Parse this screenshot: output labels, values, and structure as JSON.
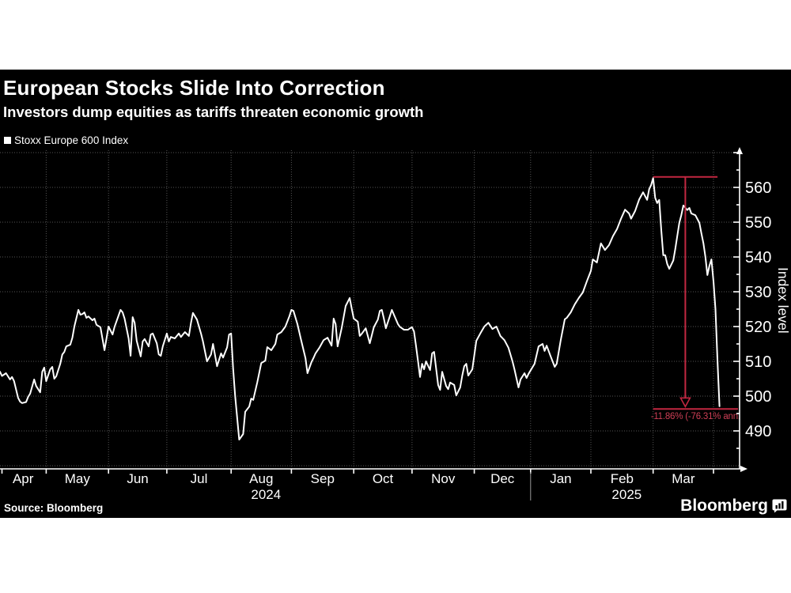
{
  "header": {
    "title": "European Stocks Slide Into Correction",
    "subtitle": "Investors dump equities as tariffs threaten economic growth"
  },
  "legend": {
    "label": "Stoxx Europe 600 Index",
    "swatch_color": "#ffffff"
  },
  "footer": {
    "source": "Source: Bloomberg",
    "brand": "Bloomberg"
  },
  "colors": {
    "panel_background": "#000000",
    "line": "#ffffff",
    "grid": "#555555",
    "axis": "#ffffff",
    "accent_red": "#c22741",
    "annotation_text_red": "#cf3f56",
    "text": "#ffffff"
  },
  "chart_data": {
    "type": "line",
    "title": "European Stocks Slide Into Correction",
    "subtitle": "Investors dump equities as tariffs threaten economic growth",
    "ylabel": "Index level",
    "xlabel": "",
    "ylim": [
      480,
      570
    ],
    "yticks": [
      490,
      500,
      510,
      520,
      530,
      540,
      550,
      560
    ],
    "grid": true,
    "legend_position": "top-left",
    "x_axis": {
      "t_max": 368,
      "months": [
        {
          "label": "Apr",
          "start": 1
        },
        {
          "label": "May",
          "start": 23
        },
        {
          "label": "Jun",
          "start": 54
        },
        {
          "label": "Jul",
          "start": 83
        },
        {
          "label": "Aug",
          "start": 115
        },
        {
          "label": "Sep",
          "start": 145
        },
        {
          "label": "Oct",
          "start": 176
        },
        {
          "label": "Nov",
          "start": 205
        },
        {
          "label": "Dec",
          "start": 236
        },
        {
          "label": "Jan",
          "start": 264
        },
        {
          "label": "Feb",
          "start": 294
        },
        {
          "label": "Mar",
          "start": 325
        }
      ],
      "end_tick": 355,
      "years": [
        {
          "label": "2024",
          "under_month": "Aug"
        },
        {
          "label": "2025",
          "under_month": "Feb"
        }
      ],
      "year_divider_after_month": "Dec"
    },
    "annotation": {
      "label": "-11.86% (-76.31% ann.",
      "peak_value": 563,
      "trough_value": 496.3,
      "peak_t": 325,
      "right_t": 357,
      "arrow_t": 341
    },
    "series": [
      {
        "name": "Stoxx Europe 600 Index",
        "color": "#ffffff",
        "points": [
          [
            0,
            507
          ],
          [
            1,
            505.8
          ],
          [
            3,
            506.6
          ],
          [
            5,
            504.8
          ],
          [
            6,
            505.5
          ],
          [
            7,
            504.3
          ],
          [
            9,
            499.5
          ],
          [
            10,
            498.4
          ],
          [
            11,
            498.0
          ],
          [
            13,
            498.3
          ],
          [
            14,
            499.8
          ],
          [
            15,
            500.7
          ],
          [
            17,
            504.8
          ],
          [
            18,
            502.9
          ],
          [
            20,
            501.1
          ],
          [
            21,
            507.0
          ],
          [
            22,
            508.2
          ],
          [
            23,
            504.3
          ],
          [
            25,
            507.7
          ],
          [
            26,
            508.4
          ],
          [
            27,
            505.0
          ],
          [
            28,
            505.7
          ],
          [
            30,
            509.3
          ],
          [
            31,
            512.0
          ],
          [
            32,
            512.7
          ],
          [
            33,
            514.3
          ],
          [
            35,
            514.8
          ],
          [
            36,
            516.8
          ],
          [
            37,
            520.0
          ],
          [
            39,
            524.8
          ],
          [
            40,
            523.4
          ],
          [
            41,
            523.6
          ],
          [
            42,
            524.1
          ],
          [
            43,
            522.5
          ],
          [
            44,
            522.9
          ],
          [
            46,
            521.8
          ],
          [
            47,
            522.3
          ],
          [
            48,
            520.5
          ],
          [
            50,
            519.8
          ],
          [
            52,
            513.2
          ],
          [
            54,
            520.0
          ],
          [
            56,
            517.7
          ],
          [
            57,
            519.9
          ],
          [
            60,
            524.8
          ],
          [
            61,
            524.1
          ],
          [
            62,
            522.3
          ],
          [
            64,
            516.6
          ],
          [
            65,
            511.6
          ],
          [
            66,
            522.7
          ],
          [
            67,
            521.1
          ],
          [
            68,
            515.9
          ],
          [
            70,
            511.4
          ],
          [
            71,
            515.7
          ],
          [
            72,
            516.4
          ],
          [
            74,
            514.3
          ],
          [
            75,
            517.7
          ],
          [
            76,
            518.0
          ],
          [
            78,
            515.2
          ],
          [
            79,
            512.0
          ],
          [
            80,
            511.6
          ],
          [
            81,
            514.3
          ],
          [
            83,
            518.0
          ],
          [
            84,
            515.7
          ],
          [
            85,
            517.0
          ],
          [
            87,
            516.6
          ],
          [
            89,
            518.0
          ],
          [
            90,
            517.0
          ],
          [
            91,
            517.7
          ],
          [
            92,
            518.4
          ],
          [
            94,
            517.3
          ],
          [
            95,
            521.0
          ],
          [
            96,
            523.9
          ],
          [
            98,
            522.0
          ],
          [
            100,
            518.0
          ],
          [
            101,
            515.7
          ],
          [
            103,
            510.0
          ],
          [
            105,
            512.0
          ],
          [
            106,
            515.0
          ],
          [
            108,
            508.6
          ],
          [
            110,
            512.3
          ],
          [
            111,
            511.1
          ],
          [
            113,
            514.0
          ],
          [
            114,
            517.7
          ],
          [
            115,
            518.0
          ],
          [
            116,
            508.0
          ],
          [
            117,
            500.0
          ],
          [
            119,
            487.5
          ],
          [
            121,
            489.1
          ],
          [
            122,
            495.5
          ],
          [
            124,
            497.0
          ],
          [
            125,
            499.3
          ],
          [
            126,
            498.9
          ],
          [
            128,
            503.9
          ],
          [
            130,
            509.5
          ],
          [
            132,
            510.2
          ],
          [
            133,
            514.1
          ],
          [
            135,
            513.2
          ],
          [
            137,
            515.0
          ],
          [
            138,
            517.7
          ],
          [
            140,
            518.4
          ],
          [
            142,
            520.0
          ],
          [
            144,
            523.0
          ],
          [
            145,
            524.8
          ],
          [
            146,
            524.5
          ],
          [
            148,
            520.7
          ],
          [
            150,
            515.7
          ],
          [
            152,
            510.9
          ],
          [
            153,
            506.6
          ],
          [
            155,
            509.8
          ],
          [
            156,
            511.0
          ],
          [
            157,
            512.3
          ],
          [
            159,
            514.0
          ],
          [
            161,
            516.1
          ],
          [
            163,
            516.8
          ],
          [
            165,
            514.5
          ],
          [
            166,
            522.3
          ],
          [
            167,
            520.7
          ],
          [
            168,
            514.3
          ],
          [
            170,
            519.5
          ],
          [
            172,
            525.9
          ],
          [
            174,
            528.2
          ],
          [
            175,
            525.2
          ],
          [
            176,
            522.3
          ],
          [
            178,
            521.4
          ],
          [
            179,
            517.3
          ],
          [
            180,
            517.9
          ],
          [
            182,
            519.5
          ],
          [
            184,
            515.2
          ],
          [
            186,
            519.8
          ],
          [
            188,
            522.0
          ],
          [
            189,
            524.5
          ],
          [
            190,
            524.8
          ],
          [
            191,
            522.3
          ],
          [
            192,
            519.5
          ],
          [
            194,
            523.0
          ],
          [
            195,
            524.8
          ],
          [
            196,
            523.4
          ],
          [
            198,
            520.7
          ],
          [
            199,
            519.9
          ],
          [
            201,
            519.1
          ],
          [
            203,
            519.1
          ],
          [
            204,
            519.5
          ],
          [
            205,
            519.8
          ],
          [
            206,
            518.6
          ],
          [
            207,
            514.5
          ],
          [
            208,
            510.0
          ],
          [
            209,
            505.5
          ],
          [
            210,
            509.3
          ],
          [
            211,
            507.7
          ],
          [
            212,
            510.0
          ],
          [
            214,
            507.5
          ],
          [
            215,
            512.3
          ],
          [
            216,
            512.7
          ],
          [
            218,
            503.2
          ],
          [
            219,
            501.8
          ],
          [
            220,
            507.0
          ],
          [
            222,
            502.9
          ],
          [
            223,
            502.0
          ],
          [
            224,
            503.9
          ],
          [
            226,
            503.2
          ],
          [
            227,
            500.2
          ],
          [
            229,
            502.5
          ],
          [
            230,
            505.9
          ],
          [
            231,
            508.6
          ],
          [
            232,
            509.3
          ],
          [
            233,
            505.9
          ],
          [
            235,
            507.7
          ],
          [
            237,
            515.9
          ],
          [
            239,
            518.0
          ],
          [
            241,
            520.0
          ],
          [
            243,
            521.1
          ],
          [
            245,
            519.3
          ],
          [
            247,
            520.0
          ],
          [
            249,
            517.3
          ],
          [
            251,
            516.1
          ],
          [
            253,
            513.9
          ],
          [
            255,
            510.0
          ],
          [
            256,
            507.7
          ],
          [
            258,
            502.5
          ],
          [
            259,
            504.8
          ],
          [
            261,
            506.6
          ],
          [
            262,
            505.2
          ],
          [
            263,
            506.4
          ],
          [
            266,
            509.3
          ],
          [
            268,
            514.3
          ],
          [
            270,
            515.0
          ],
          [
            271,
            513.0
          ],
          [
            272,
            514.5
          ],
          [
            274,
            511.4
          ],
          [
            276,
            508.4
          ],
          [
            277,
            509.3
          ],
          [
            279,
            516.1
          ],
          [
            281,
            522.1
          ],
          [
            282,
            522.5
          ],
          [
            284,
            524.1
          ],
          [
            286,
            526.4
          ],
          [
            288,
            528.2
          ],
          [
            290,
            529.8
          ],
          [
            292,
            533.0
          ],
          [
            294,
            536.0
          ],
          [
            295,
            539.3
          ],
          [
            297,
            538.4
          ],
          [
            299,
            543.9
          ],
          [
            301,
            542.0
          ],
          [
            303,
            543.4
          ],
          [
            305,
            546.0
          ],
          [
            307,
            548.0
          ],
          [
            309,
            551.0
          ],
          [
            311,
            553.6
          ],
          [
            313,
            552.5
          ],
          [
            314,
            551.0
          ],
          [
            316,
            553.2
          ],
          [
            318,
            556.5
          ],
          [
            320,
            558.6
          ],
          [
            322,
            556.4
          ],
          [
            323,
            559.5
          ],
          [
            324,
            560.7
          ],
          [
            325,
            562.7
          ],
          [
            326,
            557.0
          ],
          [
            327,
            555.5
          ],
          [
            328,
            556.4
          ],
          [
            329,
            548.0
          ],
          [
            330,
            540.5
          ],
          [
            331,
            540.5
          ],
          [
            332,
            538.0
          ],
          [
            333,
            536.6
          ],
          [
            335,
            539.0
          ],
          [
            336,
            542.3
          ],
          [
            337,
            546.0
          ],
          [
            338,
            549.8
          ],
          [
            339,
            552.0
          ],
          [
            340,
            554.8
          ],
          [
            342,
            553.5
          ],
          [
            343,
            554.1
          ],
          [
            344,
            552.5
          ],
          [
            346,
            552.0
          ],
          [
            348,
            549.8
          ],
          [
            349,
            546.8
          ],
          [
            350,
            543.9
          ],
          [
            351,
            540.0
          ],
          [
            352,
            534.8
          ],
          [
            353,
            537.5
          ],
          [
            354,
            539.3
          ],
          [
            355,
            533.0
          ],
          [
            356,
            525.0
          ],
          [
            357,
            510.0
          ],
          [
            358,
            497.1
          ]
        ]
      }
    ]
  }
}
